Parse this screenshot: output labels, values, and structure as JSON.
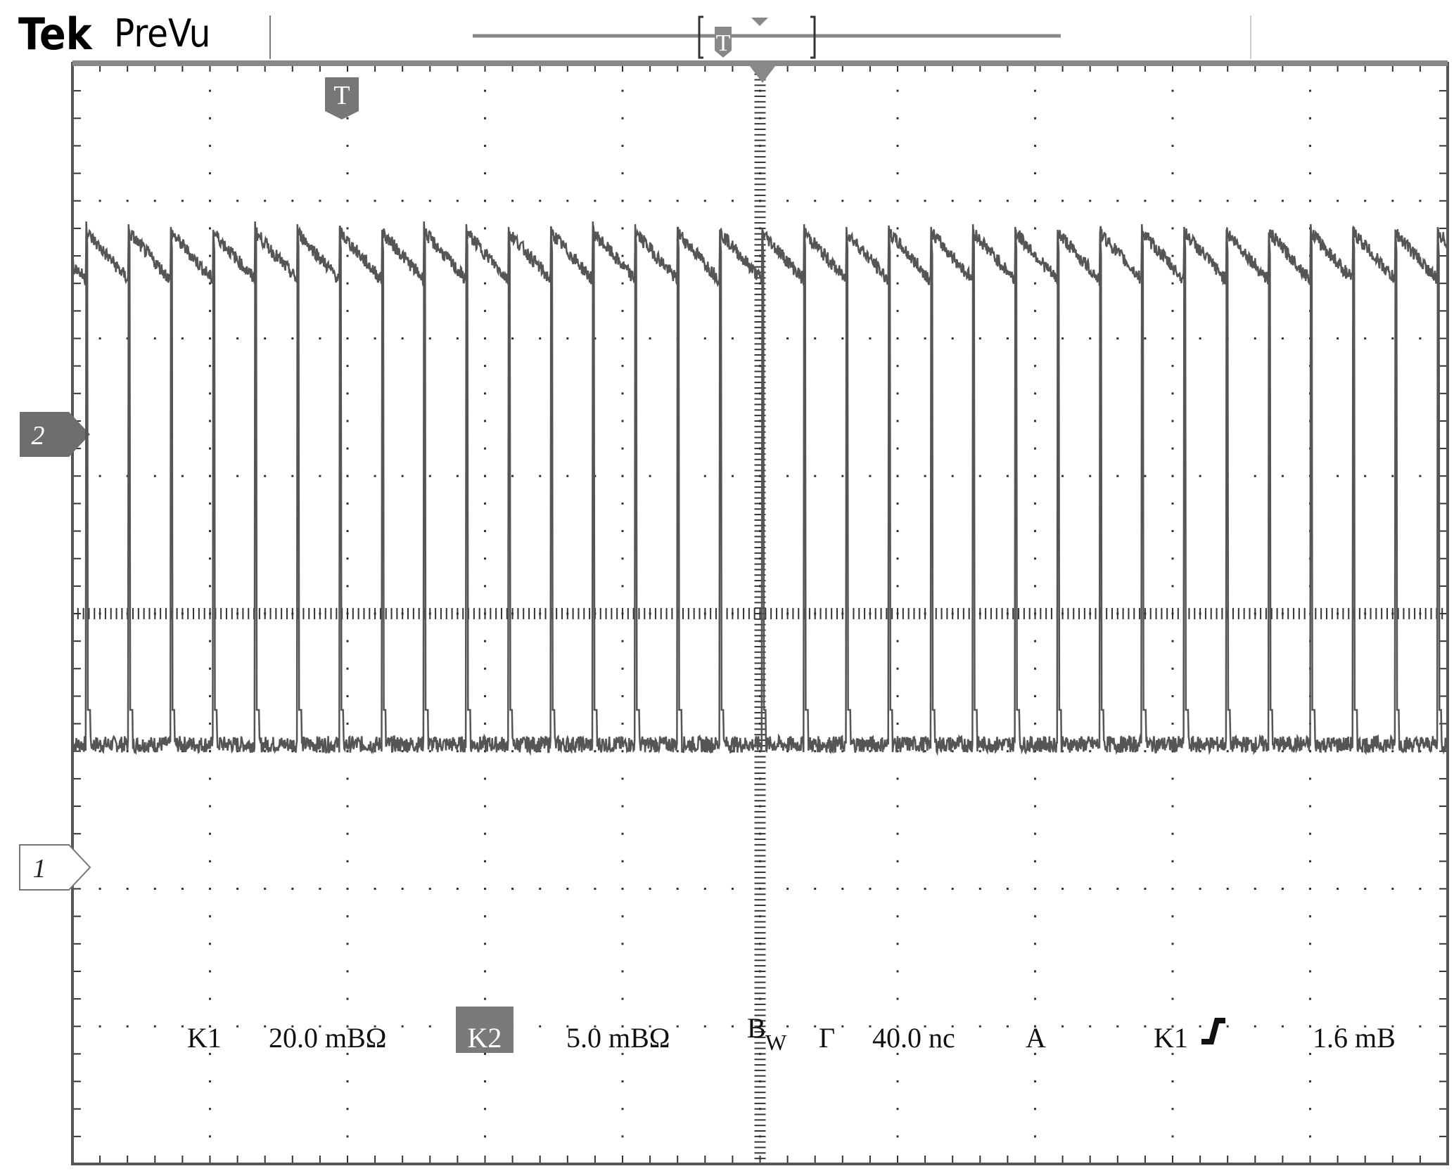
{
  "header": {
    "brand": "Tek",
    "mode": "PreVu",
    "trigger_marker": "T"
  },
  "channels": {
    "ch2_marker": "2",
    "ch1_marker": "1"
  },
  "readout": {
    "ch1_label": "K1",
    "ch1_scale": "20.0 mBΩ",
    "ch2_label": "K2",
    "ch2_scale": "5.0 mBΩ",
    "bw_label": "B",
    "bw_sub": "W",
    "time_label": "Γ",
    "timebase": "40.0 nc",
    "acq_mode": "A",
    "trig_source": "K1",
    "trig_level": "1.6 mB"
  },
  "colors": {
    "trace": "#555555",
    "grid": "#333333",
    "marker": "#6e6e6e"
  },
  "chart_data": {
    "type": "line",
    "title": "",
    "xlabel": "",
    "ylabel": "",
    "grid": true,
    "x_divisions": 10,
    "y_divisions": 8,
    "timebase_per_div": "40.0 nc",
    "series": [
      {
        "name": "K1",
        "waveform": "pulse train",
        "scale_per_div": "20.0 mBΩ",
        "pulse_count": 32,
        "baseline_div": -0.95,
        "peak_div": 2.85,
        "period_div": 0.307
      },
      {
        "name": "K2",
        "waveform": "sawtooth",
        "scale_per_div": "5.0 mBΩ",
        "cycle_count": 32,
        "center_div": 2.6,
        "amplitude_pp_div": 0.35,
        "period_div": 0.307
      }
    ]
  }
}
